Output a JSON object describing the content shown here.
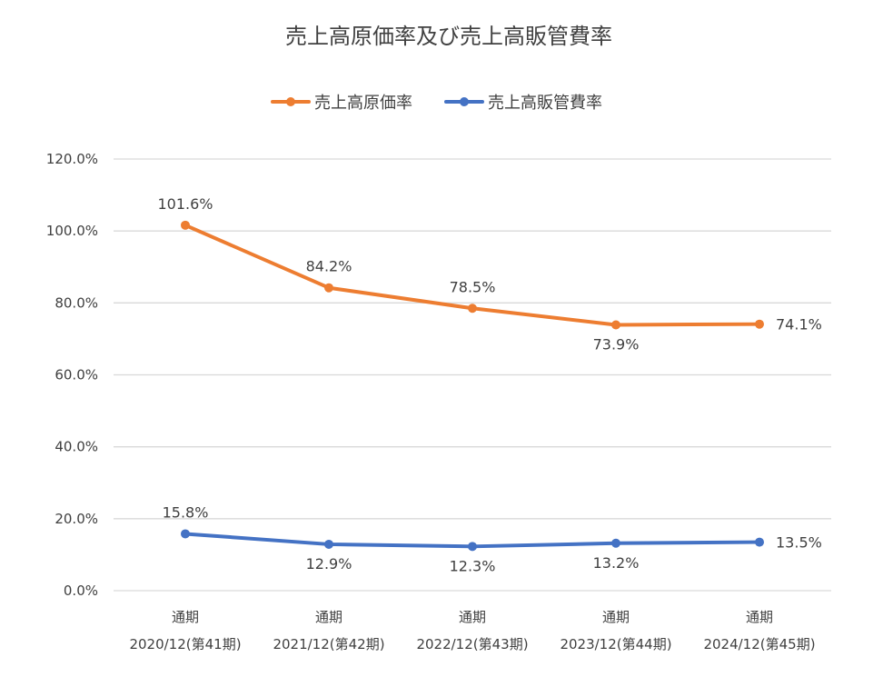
{
  "chart_data": {
    "type": "line",
    "title": "売上高原価率及び売上高販管費率",
    "categories": [
      [
        "通期",
        "2020/12(第41期)"
      ],
      [
        "通期",
        "2021/12(第42期)"
      ],
      [
        "通期",
        "2022/12(第43期)"
      ],
      [
        "通期",
        "2023/12(第44期)"
      ],
      [
        "通期",
        "2024/12(第45期)"
      ]
    ],
    "series": [
      {
        "name": "売上高原価率",
        "color": "#ED7D31",
        "values": [
          101.6,
          84.2,
          78.5,
          73.9,
          74.1
        ],
        "labels": [
          "101.6%",
          "84.2%",
          "78.5%",
          "73.9%",
          "74.1%"
        ]
      },
      {
        "name": "売上高販管費率",
        "color": "#4472C4",
        "values": [
          15.8,
          12.9,
          12.3,
          13.2,
          13.5
        ],
        "labels": [
          "15.8%",
          "12.9%",
          "12.3%",
          "13.2%",
          "13.5%"
        ]
      }
    ],
    "y_ticks": [
      "0.0%",
      "20.0%",
      "40.0%",
      "60.0%",
      "80.0%",
      "100.0%",
      "120.0%"
    ],
    "ylim": [
      0,
      120
    ],
    "y_tick_step": 20,
    "grid": true,
    "legend_position": "top",
    "gridline_color": "#D9D9D9"
  }
}
